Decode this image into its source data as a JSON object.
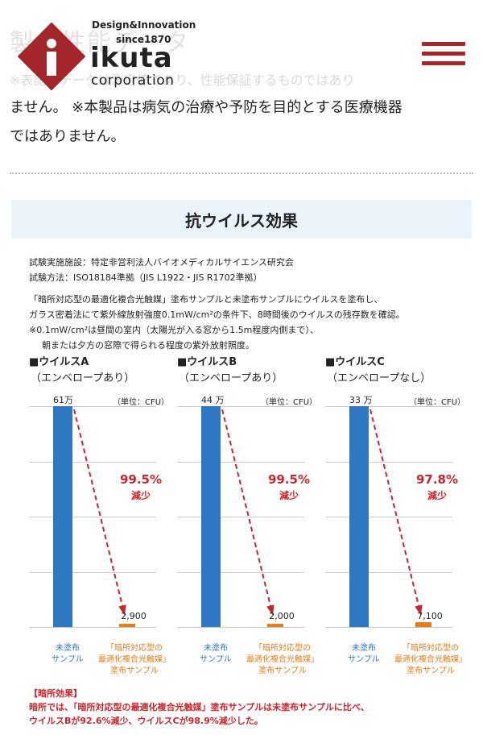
{
  "header": {
    "bg_heading": "製品性能データ",
    "bg_note": "※表記のデータは測定値であり、性能保証するものではあり",
    "logo": {
      "tagline": "Design&Innovation",
      "since": "since1870",
      "name": "ikuta",
      "sub": "corporation",
      "brand_color": "#a3262a"
    },
    "menu_icon": "hamburger-menu-icon"
  },
  "body_text": {
    "line1": "ません。 ※本製品は病気の治療や予防を目的とする医療機器",
    "line2": "ではありません。"
  },
  "panel": {
    "title": "抗ウイルス効果",
    "method_lines": [
      "試験実施施設：特定非営利法人バイオメディカルサイエンス研究会",
      "試験方法：ISO18184準拠（JIS L1922・JIS R1702準拠）",
      "「暗所対応型の最適化複合光触媒」塗布サンプルと未塗布サンプルにウイルスを塗布し、",
      "ガラス密着法にて紫外線放射強度0.1mW/cm²の条件下、8時間後のウイルスの残存数を確認。",
      "※0.1mW/cm²は昼間の室内（太陽光が入る窓から1.5m程度内側まで）、",
      "朝または夕方の窓際で得られる程度の紫外放射照度。"
    ],
    "note_lines": [
      "【暗所効果】",
      "暗所では、「暗所対応型の最適化複合光触媒」塗布サンプルは未塗布サンプルに比べ、",
      "ウイルスBが92.6%減少、ウイルスCが98.9%減少した。"
    ]
  },
  "colors": {
    "untreated_bar": "#2f79c2",
    "treated_bar": "#e47c19",
    "reduction": "#c8262c",
    "panel_header_bg": "#eaf2fa"
  },
  "chart_data": [
    {
      "type": "bar",
      "title": "■ウイルスA",
      "subtitle": "（エンベロープあり）",
      "unit": "（単位：CFU）",
      "categories": [
        "未塗布サンプル",
        "「暗所対応型の最適化複合光触媒」塗布サンプル"
      ],
      "category_lines": [
        [
          "未塗布",
          "サンプル"
        ],
        [
          "「暗所対応型の",
          "最適化複合光触媒」",
          "塗布サンプル"
        ]
      ],
      "values": [
        610000,
        2900
      ],
      "value_labels": [
        "61万",
        "2,900"
      ],
      "reduction_pct": "99.5%",
      "reduction_label": "減少",
      "ylim": [
        0,
        610000
      ]
    },
    {
      "type": "bar",
      "title": "■ウイルスB",
      "subtitle": "（エンベロープあり）",
      "unit": "（単位：CFU）",
      "categories": [
        "未塗布サンプル",
        "「暗所対応型の最適化複合光触媒」塗布サンプル"
      ],
      "category_lines": [
        [
          "未塗布",
          "サンプル"
        ],
        [
          "「暗所対応型の",
          "最適化複合光触媒」",
          "塗布サンプル"
        ]
      ],
      "values": [
        440000,
        2000
      ],
      "value_labels": [
        "44 万",
        "2,000"
      ],
      "reduction_pct": "99.5%",
      "reduction_label": "減少",
      "ylim": [
        0,
        440000
      ]
    },
    {
      "type": "bar",
      "title": "■ウイルスC",
      "subtitle": "（エンベロープなし）",
      "unit": "（単位：CFU）",
      "categories": [
        "未塗布サンプル",
        "「暗所対応型の最適化複合光触媒」塗布サンプル"
      ],
      "category_lines": [
        [
          "未塗布",
          "サンプル"
        ],
        [
          "「暗所対応型の",
          "最適化複合光触媒」",
          "塗布サンプル"
        ]
      ],
      "values": [
        330000,
        7100
      ],
      "value_labels": [
        "33 万",
        "7,100"
      ],
      "reduction_pct": "97.8%",
      "reduction_label": "減少",
      "ylim": [
        0,
        330000
      ]
    }
  ]
}
